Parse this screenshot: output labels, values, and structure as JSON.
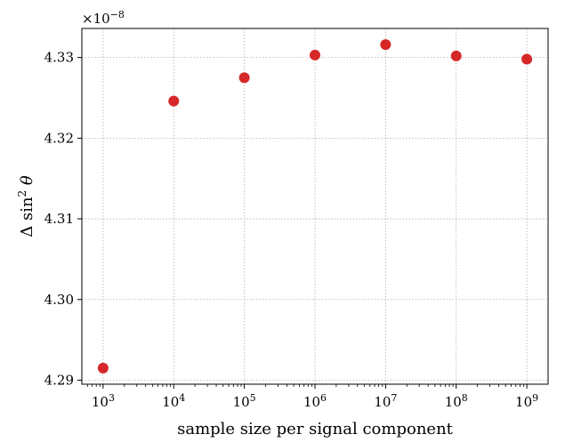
{
  "chart_data": {
    "type": "scatter",
    "xlabel": "sample size per signal component",
    "ylabel": "Δ sin² θ",
    "ylabel_parts": {
      "prefix": "Δ sin",
      "sup": "2",
      "suffix": " θ"
    },
    "x_scale": "log",
    "xlim": [
      500,
      2000000000
    ],
    "ylim": [
      4.2895,
      4.3336
    ],
    "y_multiplier": {
      "base": "×10",
      "exp": "−8"
    },
    "x_ticks": [
      {
        "value": 1000,
        "base": "10",
        "exp": "3"
      },
      {
        "value": 10000,
        "base": "10",
        "exp": "4"
      },
      {
        "value": 100000,
        "base": "10",
        "exp": "5"
      },
      {
        "value": 1000000,
        "base": "10",
        "exp": "6"
      },
      {
        "value": 10000000,
        "base": "10",
        "exp": "7"
      },
      {
        "value": 100000000,
        "base": "10",
        "exp": "8"
      },
      {
        "value": 1000000000,
        "base": "10",
        "exp": "9"
      }
    ],
    "y_ticks": [
      {
        "value": 4.29,
        "label": "4.29"
      },
      {
        "value": 4.3,
        "label": "4.30"
      },
      {
        "value": 4.31,
        "label": "4.31"
      },
      {
        "value": 4.32,
        "label": "4.32"
      },
      {
        "value": 4.33,
        "label": "4.33"
      }
    ],
    "grid": true,
    "color": "#d62728",
    "points": [
      {
        "x": 1000,
        "y": 4.2915
      },
      {
        "x": 10000,
        "y": 4.3246
      },
      {
        "x": 100000,
        "y": 4.3275
      },
      {
        "x": 1000000,
        "y": 4.3303
      },
      {
        "x": 10000000,
        "y": 4.3316
      },
      {
        "x": 100000000,
        "y": 4.3302
      },
      {
        "x": 1000000000,
        "y": 4.3298
      }
    ]
  }
}
